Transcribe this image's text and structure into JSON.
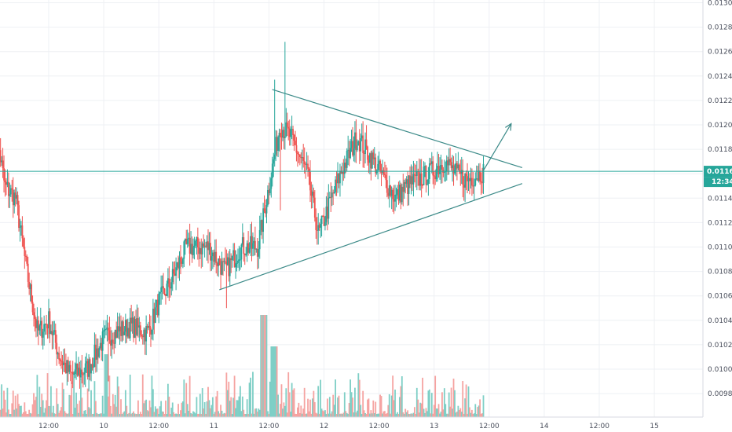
{
  "chart_data": {
    "type": "candlestick",
    "grid": true,
    "colors": {
      "up": "#26a69a",
      "down": "#ef5350",
      "up_volume": "#7fcfc6",
      "down_volume": "#f5a3a1",
      "grid": "#eef0f4",
      "axis_text": "#4a4f5c",
      "price_line": "#26a69a",
      "drawing": "#3b8a88"
    },
    "y_axis": {
      "min": 0.0096,
      "max": 0.013,
      "ticks": [
        "0.00980",
        "0.01000",
        "0.01020",
        "0.01040",
        "0.01060",
        "0.01080",
        "0.01100",
        "0.01120",
        "0.01140",
        "0.01160",
        "0.01180",
        "0.01200",
        "0.01220",
        "0.01240",
        "0.01260",
        "0.01280",
        "0.01300"
      ]
    },
    "x_axis": {
      "ticks": [
        {
          "label": "12:00",
          "day": 9.5
        },
        {
          "label": "10",
          "day": 10
        },
        {
          "label": "12:00",
          "day": 10.5
        },
        {
          "label": "11",
          "day": 11
        },
        {
          "label": "12:00",
          "day": 11.5
        },
        {
          "label": "12",
          "day": 12
        },
        {
          "label": "12:00",
          "day": 12.5
        },
        {
          "label": "13",
          "day": 13
        },
        {
          "label": "12:00",
          "day": 13.5
        },
        {
          "label": "14",
          "day": 14
        },
        {
          "label": "12:00",
          "day": 14.5
        },
        {
          "label": "15",
          "day": 15
        }
      ]
    },
    "current_price": {
      "label": "0.01162",
      "value": 0.01162
    },
    "countdown": "12:34",
    "triangle_pattern": {
      "upper_line": [
        [
          11.53,
          0.01229
        ],
        [
          13.8,
          0.01165
        ]
      ],
      "lower_line": [
        [
          11.05,
          0.01065
        ],
        [
          13.8,
          0.01152
        ]
      ],
      "breakout_arrow": [
        [
          13.45,
          0.01163
        ],
        [
          13.7,
          0.01201
        ]
      ]
    },
    "anchors": [
      [
        9.0,
        0.0121
      ],
      [
        9.1,
        0.0115
      ],
      [
        9.2,
        0.0114
      ],
      [
        9.3,
        0.0108
      ],
      [
        9.4,
        0.0103
      ],
      [
        9.5,
        0.0104
      ],
      [
        9.6,
        0.0101
      ],
      [
        9.7,
        0.00995
      ],
      [
        9.85,
        0.01
      ],
      [
        10.0,
        0.01025
      ],
      [
        10.1,
        0.0103
      ],
      [
        10.25,
        0.01035
      ],
      [
        10.4,
        0.0103
      ],
      [
        10.5,
        0.01055
      ],
      [
        10.6,
        0.0107
      ],
      [
        10.75,
        0.011
      ],
      [
        10.95,
        0.011
      ],
      [
        11.1,
        0.0108
      ],
      [
        11.25,
        0.011
      ],
      [
        11.4,
        0.011
      ],
      [
        11.5,
        0.0115
      ],
      [
        11.6,
        0.012
      ],
      [
        11.7,
        0.0119
      ],
      [
        11.85,
        0.0116
      ],
      [
        11.95,
        0.0111
      ],
      [
        12.15,
        0.0116
      ],
      [
        12.3,
        0.0119
      ],
      [
        12.45,
        0.0117
      ],
      [
        12.65,
        0.0114
      ],
      [
        12.75,
        0.0115
      ],
      [
        12.95,
        0.0116
      ],
      [
        13.1,
        0.0117
      ],
      [
        13.2,
        0.0116
      ],
      [
        13.3,
        0.01155
      ],
      [
        13.45,
        0.01162
      ]
    ],
    "spikes": [
      {
        "day": 9.02,
        "high": 0.01235
      },
      {
        "day": 11.65,
        "high": 0.01268
      },
      {
        "day": 11.55,
        "high": 0.01237
      },
      {
        "day": 11.6,
        "low": 0.0113
      },
      {
        "day": 10.04,
        "low": 0.0099
      },
      {
        "day": 11.11,
        "low": 0.0105
      }
    ]
  }
}
